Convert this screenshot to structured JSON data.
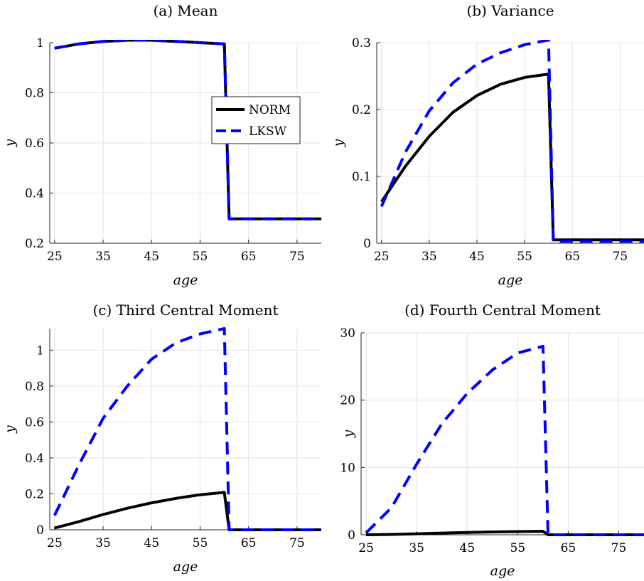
{
  "chart_data": [
    {
      "type": "line",
      "title": "(a) Mean",
      "xlabel": "age",
      "ylabel": "y",
      "xlim": [
        24,
        80
      ],
      "ylim": [
        0.2,
        1.0
      ],
      "xticks": [
        25,
        35,
        45,
        55,
        65,
        75
      ],
      "yticks": [
        0.2,
        0.4,
        0.6,
        0.8,
        1.0
      ],
      "ytick_labels": [
        "0.2",
        "0.4",
        "0.6",
        "0.8",
        "1"
      ],
      "grid": true,
      "legend": {
        "placement": "center-right",
        "entries": [
          "NORM",
          "LKSW"
        ]
      },
      "series": [
        {
          "name": "NORM",
          "color": "#000000",
          "style": "solid",
          "x": [
            25,
            30,
            35,
            40,
            45,
            50,
            55,
            60,
            61,
            65,
            70,
            75,
            80
          ],
          "y": [
            0.978,
            0.995,
            1.005,
            1.01,
            1.01,
            1.005,
            1.0,
            0.995,
            0.297,
            0.297,
            0.297,
            0.297,
            0.297
          ]
        },
        {
          "name": "LKSW",
          "color": "#0000ff",
          "style": "dashed",
          "x": [
            25,
            30,
            35,
            40,
            45,
            50,
            55,
            60,
            61,
            65,
            70,
            75,
            80
          ],
          "y": [
            0.978,
            0.995,
            1.005,
            1.01,
            1.01,
            1.005,
            1.0,
            0.995,
            0.297,
            0.297,
            0.297,
            0.297,
            0.297
          ]
        }
      ]
    },
    {
      "type": "line",
      "title": "(b) Variance",
      "xlabel": "age",
      "ylabel": "y",
      "xlim": [
        24,
        80
      ],
      "ylim": [
        0,
        0.3
      ],
      "xticks": [
        25,
        35,
        45,
        55,
        65,
        75
      ],
      "yticks": [
        0,
        0.1,
        0.2,
        0.3
      ],
      "ytick_labels": [
        "0",
        "0.1",
        "0.2",
        "0.3"
      ],
      "grid": true,
      "series": [
        {
          "name": "NORM",
          "color": "#000000",
          "style": "solid",
          "x": [
            25,
            30,
            35,
            40,
            45,
            50,
            55,
            60,
            61,
            65,
            70,
            75,
            80
          ],
          "y": [
            0.062,
            0.115,
            0.16,
            0.196,
            0.221,
            0.238,
            0.248,
            0.253,
            0.005,
            0.005,
            0.005,
            0.005,
            0.005
          ]
        },
        {
          "name": "LKSW",
          "color": "#0000ff",
          "style": "dashed",
          "x": [
            25,
            30,
            35,
            40,
            45,
            50,
            55,
            60,
            61,
            65,
            70,
            75,
            80
          ],
          "y": [
            0.055,
            0.136,
            0.198,
            0.24,
            0.268,
            0.285,
            0.297,
            0.304,
            0.003,
            0.003,
            0.003,
            0.003,
            0.003
          ]
        }
      ]
    },
    {
      "type": "line",
      "title": "(c) Third Central Moment",
      "xlabel": "age",
      "ylabel": "y",
      "xlim": [
        24,
        80
      ],
      "ylim": [
        0,
        1.12
      ],
      "xticks": [
        25,
        35,
        45,
        55,
        65,
        75
      ],
      "yticks": [
        0,
        0.2,
        0.4,
        0.6,
        0.8,
        1.0
      ],
      "ytick_labels": [
        "0",
        "0.2",
        "0.4",
        "0.6",
        "0.8",
        "1"
      ],
      "grid": true,
      "series": [
        {
          "name": "NORM",
          "color": "#000000",
          "style": "solid",
          "x": [
            25,
            30,
            35,
            40,
            45,
            50,
            55,
            60,
            61,
            65,
            70,
            75,
            80
          ],
          "y": [
            0.01,
            0.045,
            0.085,
            0.12,
            0.15,
            0.175,
            0.195,
            0.208,
            0.0,
            0.0,
            0.0,
            0.0,
            0.0
          ]
        },
        {
          "name": "LKSW",
          "color": "#0000ff",
          "style": "dashed",
          "x": [
            25,
            30,
            35,
            40,
            45,
            50,
            55,
            60,
            61,
            65,
            70,
            75,
            80
          ],
          "y": [
            0.08,
            0.36,
            0.62,
            0.8,
            0.95,
            1.04,
            1.09,
            1.12,
            0.0,
            0.0,
            0.0,
            0.0,
            0.0
          ]
        }
      ]
    },
    {
      "type": "line",
      "title": "(d) Fourth Central Moment",
      "xlabel": "age",
      "ylabel": "y",
      "xlim": [
        24,
        80
      ],
      "ylim": [
        0,
        30
      ],
      "xticks": [
        25,
        35,
        45,
        55,
        65,
        75
      ],
      "yticks": [
        0,
        10,
        20,
        30
      ],
      "ytick_labels": [
        "0",
        "10",
        "20",
        "30"
      ],
      "grid": true,
      "series": [
        {
          "name": "NORM",
          "color": "#000000",
          "style": "solid",
          "x": [
            25,
            30,
            35,
            40,
            45,
            50,
            55,
            60,
            61,
            65,
            70,
            75,
            80
          ],
          "y": [
            0.0,
            0.05,
            0.15,
            0.25,
            0.35,
            0.42,
            0.48,
            0.52,
            0.0,
            0.0,
            0.0,
            0.0,
            0.0
          ]
        },
        {
          "name": "LKSW",
          "color": "#0000ff",
          "style": "dashed",
          "x": [
            25,
            30,
            35,
            40,
            45,
            50,
            55,
            60,
            61,
            65,
            70,
            75,
            80
          ],
          "y": [
            0.3,
            4.0,
            10.5,
            16.5,
            21.0,
            24.5,
            27.0,
            28.0,
            0.0,
            0.0,
            0.0,
            0.0,
            0.0
          ]
        }
      ]
    }
  ]
}
